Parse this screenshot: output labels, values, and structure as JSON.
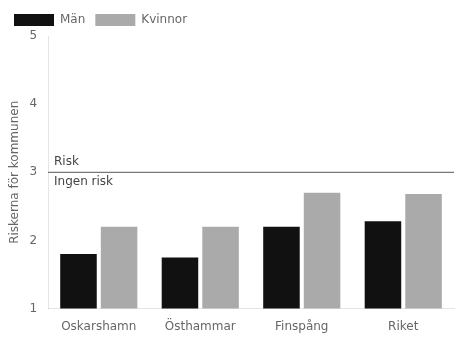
{
  "chart_data": {
    "type": "bar",
    "categories": [
      "Oskarshamn",
      "Östhammar",
      "Finspång",
      "Riket"
    ],
    "series": [
      {
        "name": "Män",
        "color": "#111111",
        "values": [
          1.8,
          1.75,
          2.2,
          2.28
        ]
      },
      {
        "name": "Kvinnor",
        "color": "#aaaaaa",
        "values": [
          2.2,
          2.2,
          2.7,
          2.68
        ]
      }
    ],
    "ylabel": "Riskerna för kommunen",
    "ylim": [
      1,
      5
    ],
    "yticks": [
      1,
      2,
      3,
      4,
      5
    ],
    "grid": false,
    "legend": "upper left",
    "hline": {
      "y": 3.0,
      "color": "#555555",
      "label_above": "Risk",
      "label_below": "Ingen risk"
    }
  }
}
